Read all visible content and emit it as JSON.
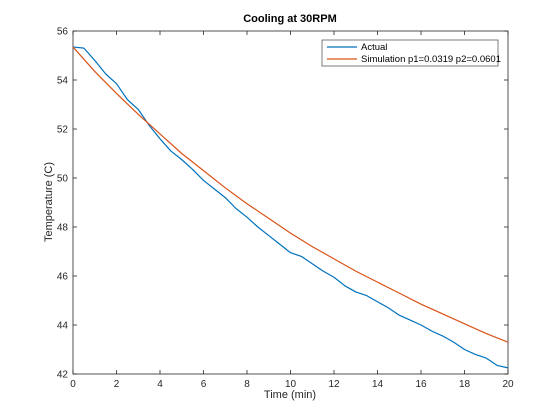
{
  "chart_data": {
    "type": "line",
    "title": "Cooling at 30RPM",
    "xlabel": "Time (min)",
    "ylabel": "Temperature (C)",
    "xlim": [
      0,
      20
    ],
    "ylim": [
      42,
      56
    ],
    "xticks": [
      0,
      2,
      4,
      6,
      8,
      10,
      12,
      14,
      16,
      18,
      20
    ],
    "yticks": [
      42,
      44,
      46,
      48,
      50,
      52,
      54,
      56
    ],
    "grid": false,
    "legend_position": "top-right",
    "series": [
      {
        "name": "Actual",
        "color": "#0072BD",
        "x": [
          0,
          0.5,
          1.0,
          1.5,
          2.0,
          2.5,
          3.0,
          3.5,
          4.0,
          4.5,
          5.0,
          5.5,
          6.0,
          6.5,
          7.0,
          7.5,
          8.0,
          8.5,
          9.0,
          9.5,
          10.0,
          10.5,
          11.0,
          11.5,
          12.0,
          12.5,
          13.0,
          13.5,
          14.0,
          14.5,
          15.0,
          15.5,
          16.0,
          16.5,
          17.0,
          17.5,
          18.0,
          18.5,
          19.0,
          19.5,
          20.0
        ],
        "y": [
          55.35,
          55.3,
          54.8,
          54.25,
          53.85,
          53.2,
          52.8,
          52.15,
          51.6,
          51.1,
          50.75,
          50.35,
          49.9,
          49.55,
          49.2,
          48.75,
          48.4,
          48.0,
          47.65,
          47.3,
          46.95,
          46.8,
          46.5,
          46.2,
          45.95,
          45.6,
          45.35,
          45.2,
          44.95,
          44.7,
          44.4,
          44.2,
          44.0,
          43.75,
          43.55,
          43.3,
          43.0,
          42.8,
          42.65,
          42.35,
          42.25
        ]
      },
      {
        "name": "Simulation p1=0.0319 p2=0.0601",
        "color": "#D95319",
        "x": [
          0,
          1,
          2,
          3,
          4,
          5,
          6,
          7,
          8,
          9,
          10,
          11,
          12,
          13,
          14,
          15,
          16,
          17,
          18,
          19,
          20
        ],
        "y": [
          55.35,
          54.35,
          53.45,
          52.6,
          51.8,
          51.0,
          50.3,
          49.6,
          48.95,
          48.35,
          47.75,
          47.2,
          46.7,
          46.2,
          45.75,
          45.3,
          44.85,
          44.45,
          44.05,
          43.65,
          43.3
        ]
      }
    ]
  }
}
